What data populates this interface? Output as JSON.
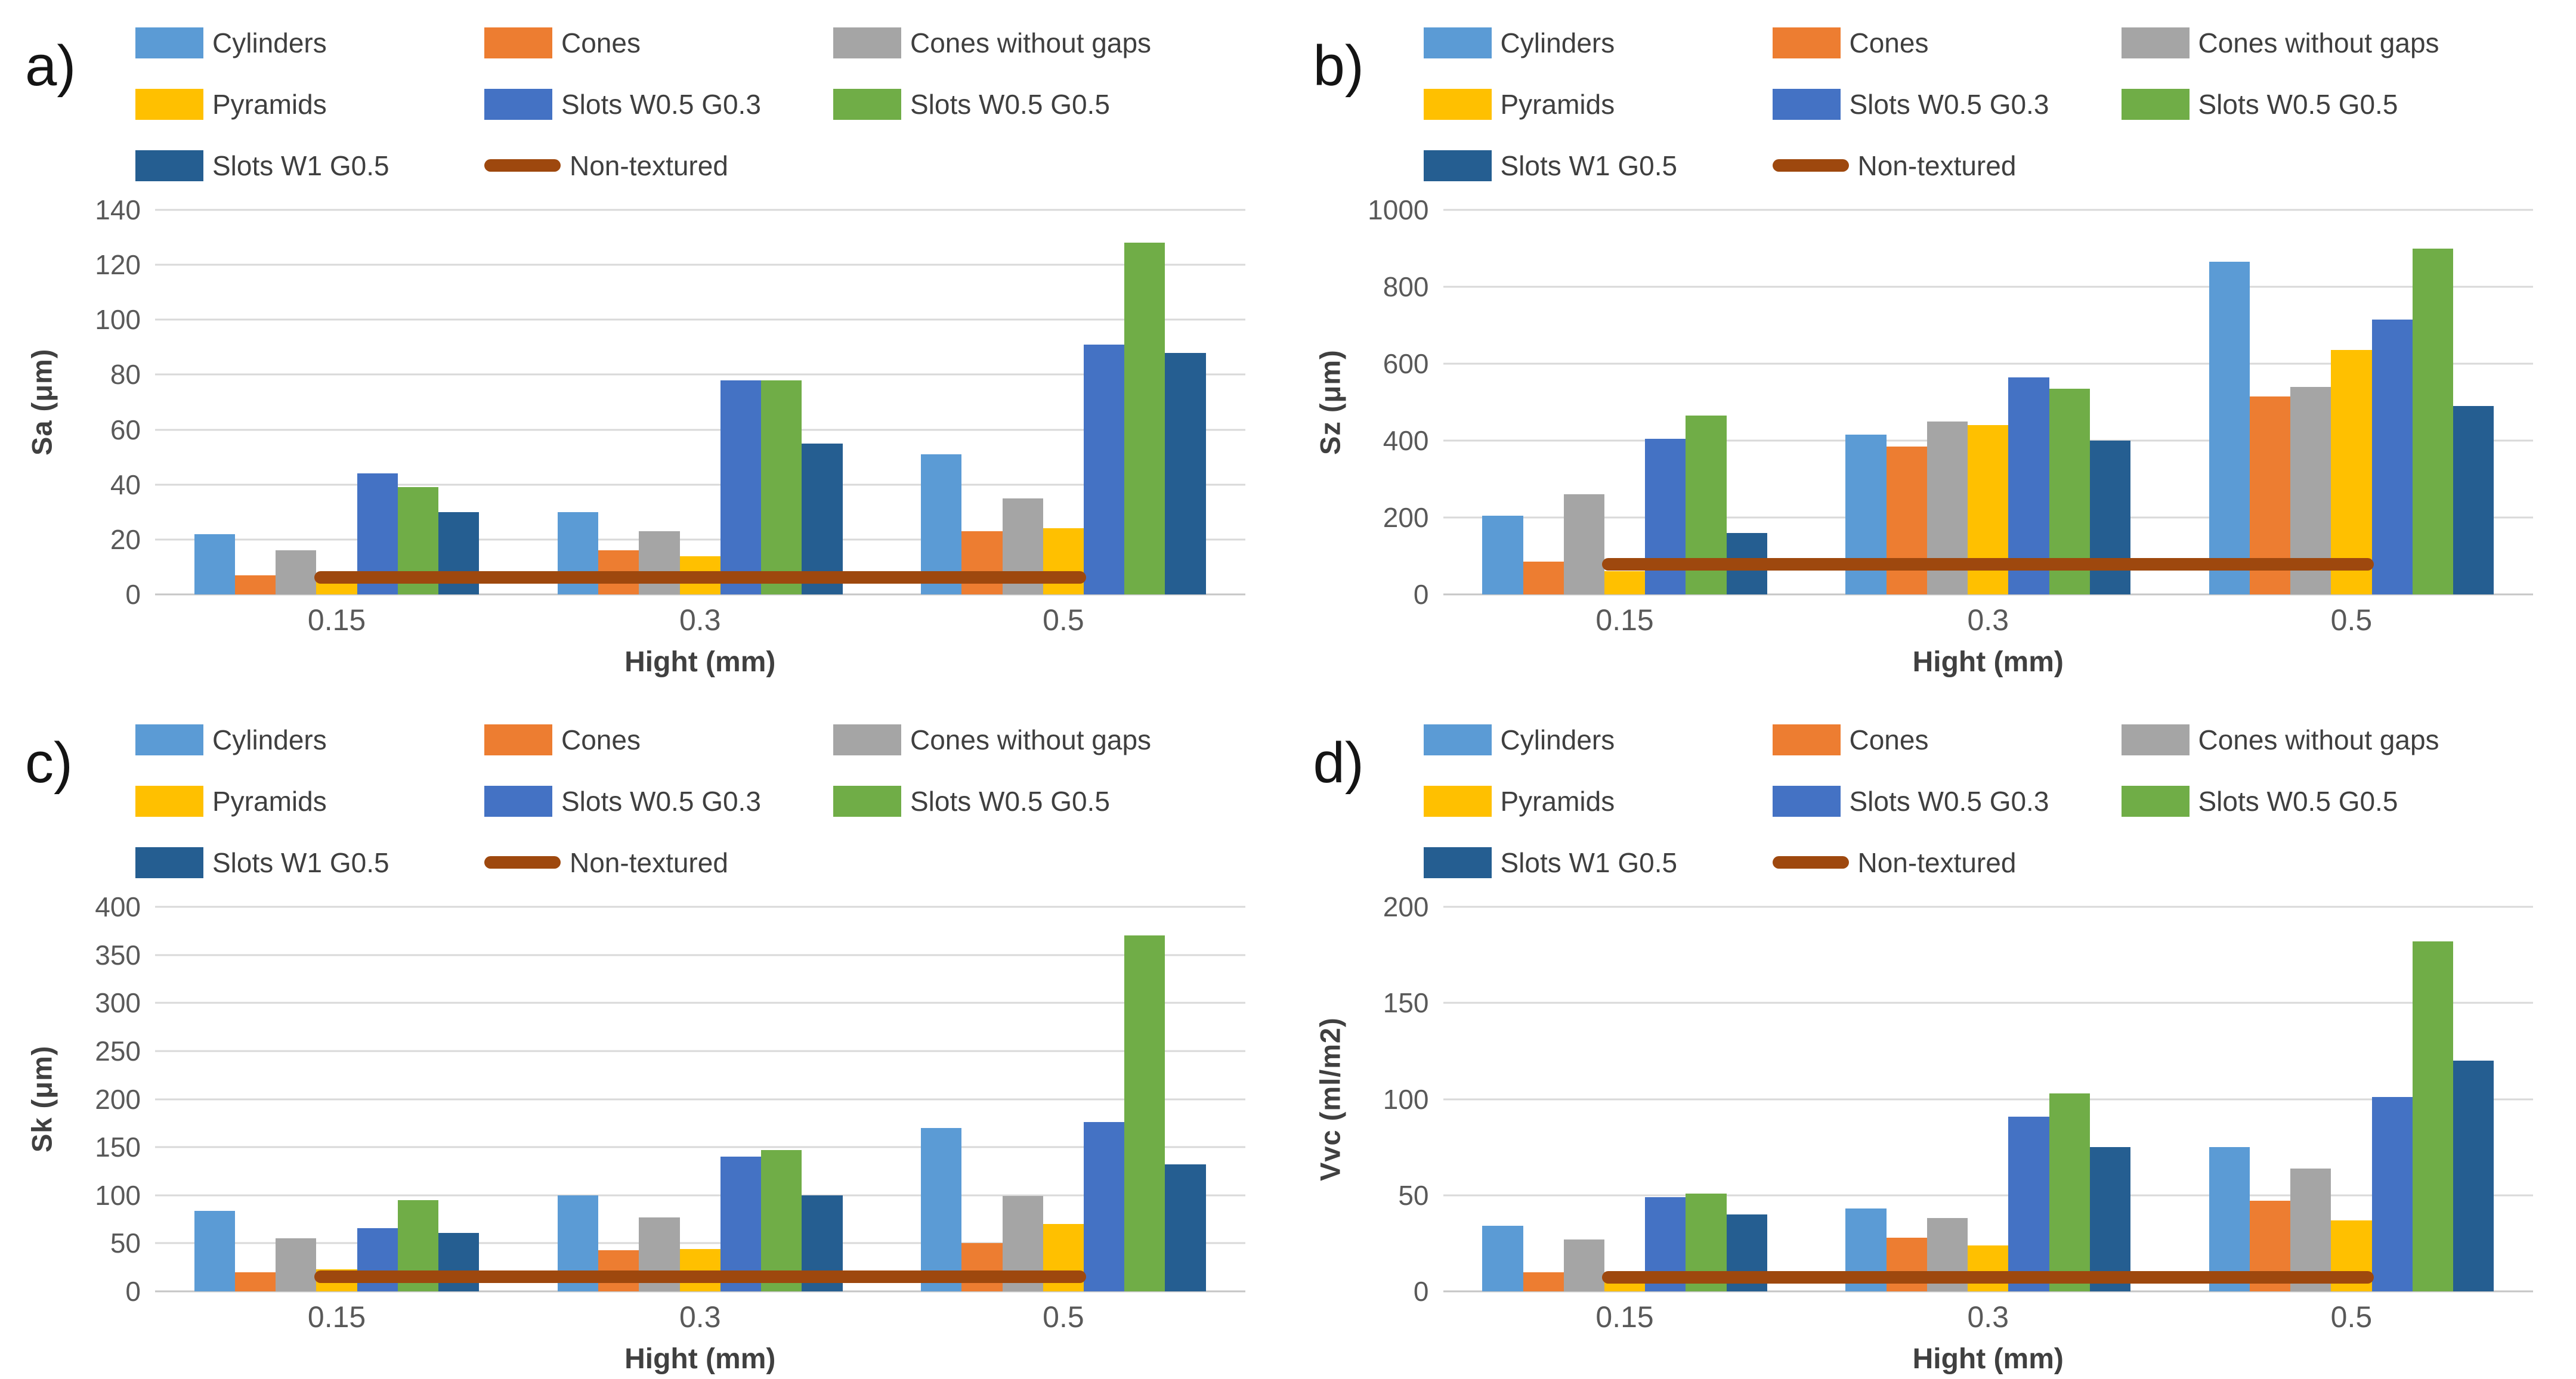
{
  "page": {
    "background": "#ffffff",
    "figure_description": "Four grouped bar charts of surface texture parameters vs height"
  },
  "palette": {
    "bars": [
      "#5B9BD5",
      "#ED7D31",
      "#A5A5A5",
      "#FFC000",
      "#4472C4",
      "#70AD47",
      "#255E91"
    ],
    "line": "#9E480E",
    "gridline": "#D9D9D9",
    "tick_text": "#595959",
    "axis_title_text": "#404040"
  },
  "chart_data": [
    {
      "type": "bar",
      "letter": "a)",
      "title": "",
      "categories": [
        "0.15",
        "0.3",
        "0.5"
      ],
      "xlabel": "Hight (mm)",
      "ylabel": "Sa (μm)",
      "ylim": [
        0,
        140
      ],
      "ystep": 20,
      "grid": true,
      "legend_position": "top",
      "series": [
        {
          "name": "Cylinders",
          "values": [
            22,
            30,
            51
          ]
        },
        {
          "name": "Cones",
          "values": [
            7,
            16,
            23
          ]
        },
        {
          "name": "Cones without gaps",
          "values": [
            16,
            23,
            35
          ]
        },
        {
          "name": "Pyramids",
          "values": [
            7,
            14,
            24
          ]
        },
        {
          "name": "Slots W0.5 G0.3",
          "values": [
            44,
            78,
            91
          ]
        },
        {
          "name": "Slots W0.5 G0.5",
          "values": [
            39,
            78,
            128
          ]
        },
        {
          "name": "Slots W1 G0.5",
          "values": [
            30,
            55,
            88
          ]
        }
      ],
      "line_series": {
        "name": "Non-textured",
        "value": 6
      }
    },
    {
      "type": "bar",
      "letter": "b)",
      "title": "",
      "categories": [
        "0.15",
        "0.3",
        "0.5"
      ],
      "xlabel": "Hight (mm)",
      "ylabel": "Sz (μm)",
      "ylim": [
        0,
        1000
      ],
      "ystep": 200,
      "grid": true,
      "legend_position": "top",
      "series": [
        {
          "name": "Cylinders",
          "values": [
            205,
            415,
            865
          ]
        },
        {
          "name": "Cones",
          "values": [
            85,
            385,
            515
          ]
        },
        {
          "name": "Cones without gaps",
          "values": [
            260,
            450,
            540
          ]
        },
        {
          "name": "Pyramids",
          "values": [
            60,
            440,
            635
          ]
        },
        {
          "name": "Slots W0.5 G0.3",
          "values": [
            405,
            565,
            715
          ]
        },
        {
          "name": "Slots W0.5 G0.5",
          "values": [
            465,
            535,
            900
          ]
        },
        {
          "name": "Slots W1 G0.5",
          "values": [
            160,
            400,
            490
          ]
        }
      ],
      "line_series": {
        "name": "Non-textured",
        "value": 78
      }
    },
    {
      "type": "bar",
      "letter": "c)",
      "title": "",
      "categories": [
        "0.15",
        "0.3",
        "0.5"
      ],
      "xlabel": "Hight (mm)",
      "ylabel": "Sk (μm)",
      "ylim": [
        0,
        400
      ],
      "ystep": 50,
      "grid": true,
      "legend_position": "top",
      "series": [
        {
          "name": "Cylinders",
          "values": [
            84,
            100,
            170
          ]
        },
        {
          "name": "Cones",
          "values": [
            20,
            43,
            50
          ]
        },
        {
          "name": "Cones without gaps",
          "values": [
            55,
            77,
            99
          ]
        },
        {
          "name": "Pyramids",
          "values": [
            23,
            44,
            70
          ]
        },
        {
          "name": "Slots W0.5 G0.3",
          "values": [
            66,
            140,
            176
          ]
        },
        {
          "name": "Slots W0.5 G0.5",
          "values": [
            95,
            147,
            370
          ]
        },
        {
          "name": "Slots W1 G0.5",
          "values": [
            61,
            100,
            132
          ]
        }
      ],
      "line_series": {
        "name": "Non-textured",
        "value": 15
      }
    },
    {
      "type": "bar",
      "letter": "d)",
      "title": "",
      "categories": [
        "0.15",
        "0.3",
        "0.5"
      ],
      "xlabel": "Hight (mm)",
      "ylabel": "Vvc (ml/m2)",
      "ylim": [
        0,
        200
      ],
      "ystep": 50,
      "grid": true,
      "legend_position": "top",
      "series": [
        {
          "name": "Cylinders",
          "values": [
            34,
            43,
            75
          ]
        },
        {
          "name": "Cones",
          "values": [
            10,
            28,
            47
          ]
        },
        {
          "name": "Cones without gaps",
          "values": [
            27,
            38,
            64
          ]
        },
        {
          "name": "Pyramids",
          "values": [
            10,
            24,
            37
          ]
        },
        {
          "name": "Slots W0.5 G0.3",
          "values": [
            49,
            91,
            101
          ]
        },
        {
          "name": "Slots W0.5 G0.5",
          "values": [
            51,
            103,
            182
          ]
        },
        {
          "name": "Slots W1 G0.5",
          "values": [
            40,
            75,
            120
          ]
        }
      ],
      "line_series": {
        "name": "Non-textured",
        "value": 7
      }
    }
  ]
}
